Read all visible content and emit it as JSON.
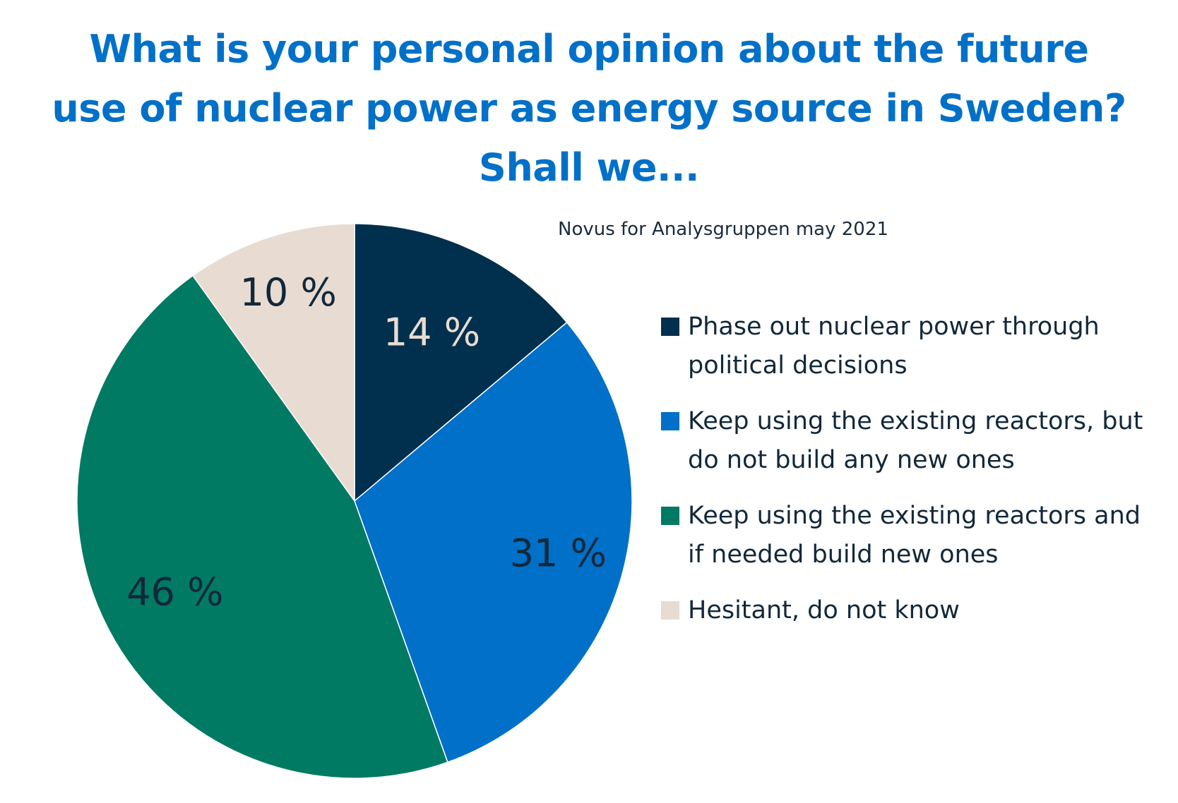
{
  "chart_data": {
    "type": "pie",
    "title_lines": [
      "What is your personal opinion about the future",
      "use of nuclear power as energy source in Sweden?",
      "Shall we..."
    ],
    "source": "Novus for Analysgruppen may 2021",
    "slices": [
      {
        "label": "Phase out nuclear power through political decisions",
        "value": 14,
        "display": "14 %",
        "color": "#00304d",
        "label_color": "#e8dcd2"
      },
      {
        "label": "Keep using the existing reactors, but do not build any new ones",
        "value": 31,
        "display": "31 %",
        "color": "#0070c8",
        "label_color": "#12283a"
      },
      {
        "label": "Keep using the existing reactors and if needed build new ones",
        "value": 46,
        "display": "46 %",
        "color": "#007a63",
        "label_color": "#12283a"
      },
      {
        "label": "Hesitant, do not know",
        "value": 10,
        "display": "10 %",
        "color": "#e8dcd2",
        "label_color": "#12283a"
      }
    ]
  }
}
